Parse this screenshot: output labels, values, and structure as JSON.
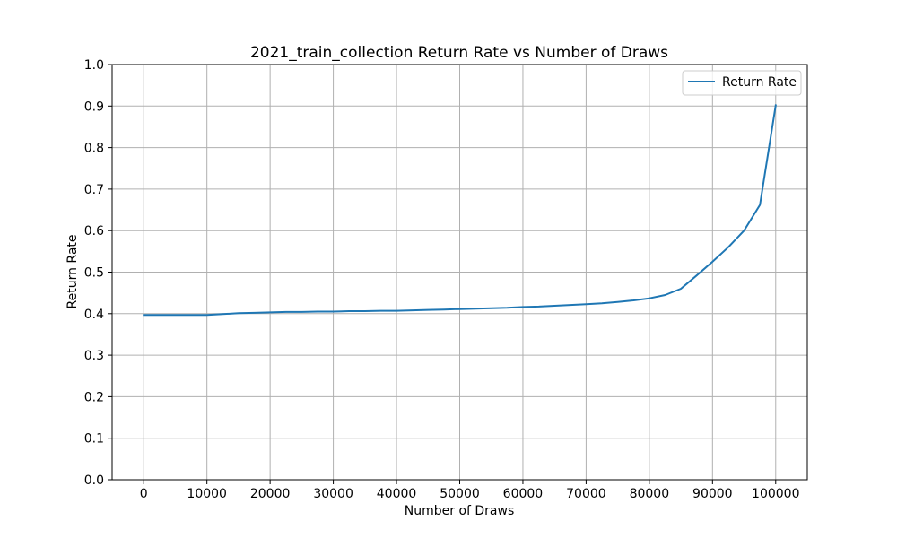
{
  "chart_data": {
    "type": "line",
    "title": "2021_train_collection Return Rate vs Number of Draws",
    "xlabel": "Number of Draws",
    "ylabel": "Return Rate",
    "xlim": [
      -5000,
      105000
    ],
    "ylim": [
      0.0,
      1.0
    ],
    "xticks": [
      0,
      10000,
      20000,
      30000,
      40000,
      50000,
      60000,
      70000,
      80000,
      90000,
      100000
    ],
    "yticks": [
      0.0,
      0.1,
      0.2,
      0.3,
      0.4,
      0.5,
      0.6,
      0.7,
      0.8,
      0.9,
      1.0
    ],
    "xtick_labels": [
      "0",
      "10000",
      "20000",
      "30000",
      "40000",
      "50000",
      "60000",
      "70000",
      "80000",
      "90000",
      "100000"
    ],
    "ytick_labels": [
      "0.0",
      "0.1",
      "0.2",
      "0.3",
      "0.4",
      "0.5",
      "0.6",
      "0.7",
      "0.8",
      "0.9",
      "1.0"
    ],
    "grid": true,
    "legend_position": "top-right",
    "series": [
      {
        "name": "Return Rate",
        "color": "#1f77b4",
        "x": [
          0,
          2500,
          5000,
          7500,
          10000,
          12500,
          15000,
          17500,
          20000,
          22500,
          25000,
          27500,
          30000,
          32500,
          35000,
          37500,
          40000,
          42500,
          45000,
          47500,
          50000,
          52500,
          55000,
          57500,
          60000,
          62500,
          65000,
          67500,
          70000,
          72500,
          75000,
          77500,
          80000,
          82500,
          85000,
          87500,
          90000,
          92500,
          95000,
          97500,
          100000
        ],
        "y": [
          0.397,
          0.397,
          0.397,
          0.397,
          0.397,
          0.399,
          0.401,
          0.402,
          0.403,
          0.404,
          0.404,
          0.405,
          0.405,
          0.406,
          0.406,
          0.407,
          0.407,
          0.408,
          0.409,
          0.41,
          0.411,
          0.412,
          0.413,
          0.414,
          0.416,
          0.417,
          0.419,
          0.421,
          0.423,
          0.425,
          0.428,
          0.432,
          0.437,
          0.445,
          0.46,
          0.492,
          0.525,
          0.56,
          0.6,
          0.662,
          0.902
        ]
      }
    ]
  }
}
